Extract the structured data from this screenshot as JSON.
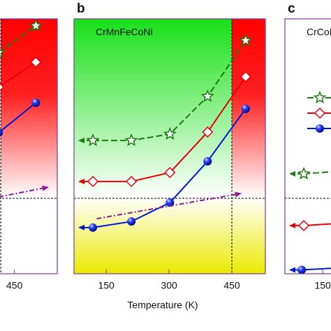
{
  "chart_data": [
    {
      "type": "line",
      "xlim": [
        413,
        550
      ],
      "ylim": [
        0,
        100
      ],
      "xticks": [
        450
      ],
      "hline": 29.6,
      "vline": 418,
      "series": [
        {
          "color": "#1a7a10",
          "marker": "star",
          "linestyle": "dashed",
          "x": [
            413,
            500
          ],
          "values": [
            86.8,
            97.3
          ]
        },
        {
          "color": "#e8000a",
          "marker": "diamond",
          "linestyle": "solid",
          "x": [
            413,
            500
          ],
          "values": [
            73.2,
            83.0
          ]
        },
        {
          "color": "#0018d0",
          "marker": "circle",
          "linestyle": "solid",
          "x": [
            413,
            500
          ],
          "values": [
            55.3,
            67.1
          ]
        },
        {
          "color": "#8a1a9a",
          "marker": "none",
          "linestyle": "dashdot",
          "arrow": "right",
          "x": [
            413,
            530
          ],
          "values": [
            30.1,
            34.0
          ]
        }
      ]
    },
    {
      "type": "line",
      "panel_label": "b",
      "title": "CrMnFeCoNi",
      "x_label": "Temperature (K)",
      "xlim": [
        73,
        530
      ],
      "ylim": [
        0,
        100
      ],
      "xticks": [
        150,
        300,
        450
      ],
      "hline": 29.6,
      "vline": 450,
      "series": [
        {
          "color": "#1a7a10",
          "marker": "star",
          "linestyle": "dashed",
          "arrow": "left",
          "x": [
            118,
            210,
            302,
            392,
            483
          ],
          "values": [
            52.3,
            52.3,
            54.8,
            69.6,
            91.5
          ]
        },
        {
          "color": "#e8000a",
          "marker": "diamond",
          "linestyle": "solid",
          "arrow": "left",
          "x": [
            118,
            210,
            302,
            392,
            483
          ],
          "values": [
            36.2,
            36.2,
            39.7,
            55.6,
            77.3
          ]
        },
        {
          "color": "#0018d0",
          "marker": "circle",
          "linestyle": "solid",
          "arrow": "left",
          "x": [
            118,
            210,
            302,
            392,
            483
          ],
          "values": [
            18.1,
            20.5,
            27.9,
            44.1,
            64.7
          ]
        },
        {
          "color": "#8a1a9a",
          "marker": "none",
          "linestyle": "dashdot",
          "arrow": "right",
          "x": [
            127,
            473
          ],
          "values": [
            21.6,
            31.5
          ]
        }
      ]
    },
    {
      "type": "line",
      "panel_label": "c",
      "title": "CrCoNi",
      "xlim": [
        60,
        213
      ],
      "ylim": [
        0,
        100
      ],
      "xticks": [
        150
      ],
      "hline": 29.6,
      "series": [
        {
          "color": "#1a7a10",
          "marker": "star",
          "linestyle": "dashed",
          "arrow": "left",
          "x": [
            105,
            213
          ],
          "values": [
            39.2,
            40.5
          ]
        },
        {
          "color": "#e8000a",
          "marker": "diamond",
          "linestyle": "solid",
          "arrow": "left",
          "x": [
            105,
            213
          ],
          "values": [
            18.9,
            20.0
          ]
        },
        {
          "color": "#0018d0",
          "marker": "circle",
          "linestyle": "solid",
          "arrow": "left",
          "x": [
            100,
            213
          ],
          "values": [
            1.5,
            2.5
          ]
        }
      ]
    }
  ]
}
